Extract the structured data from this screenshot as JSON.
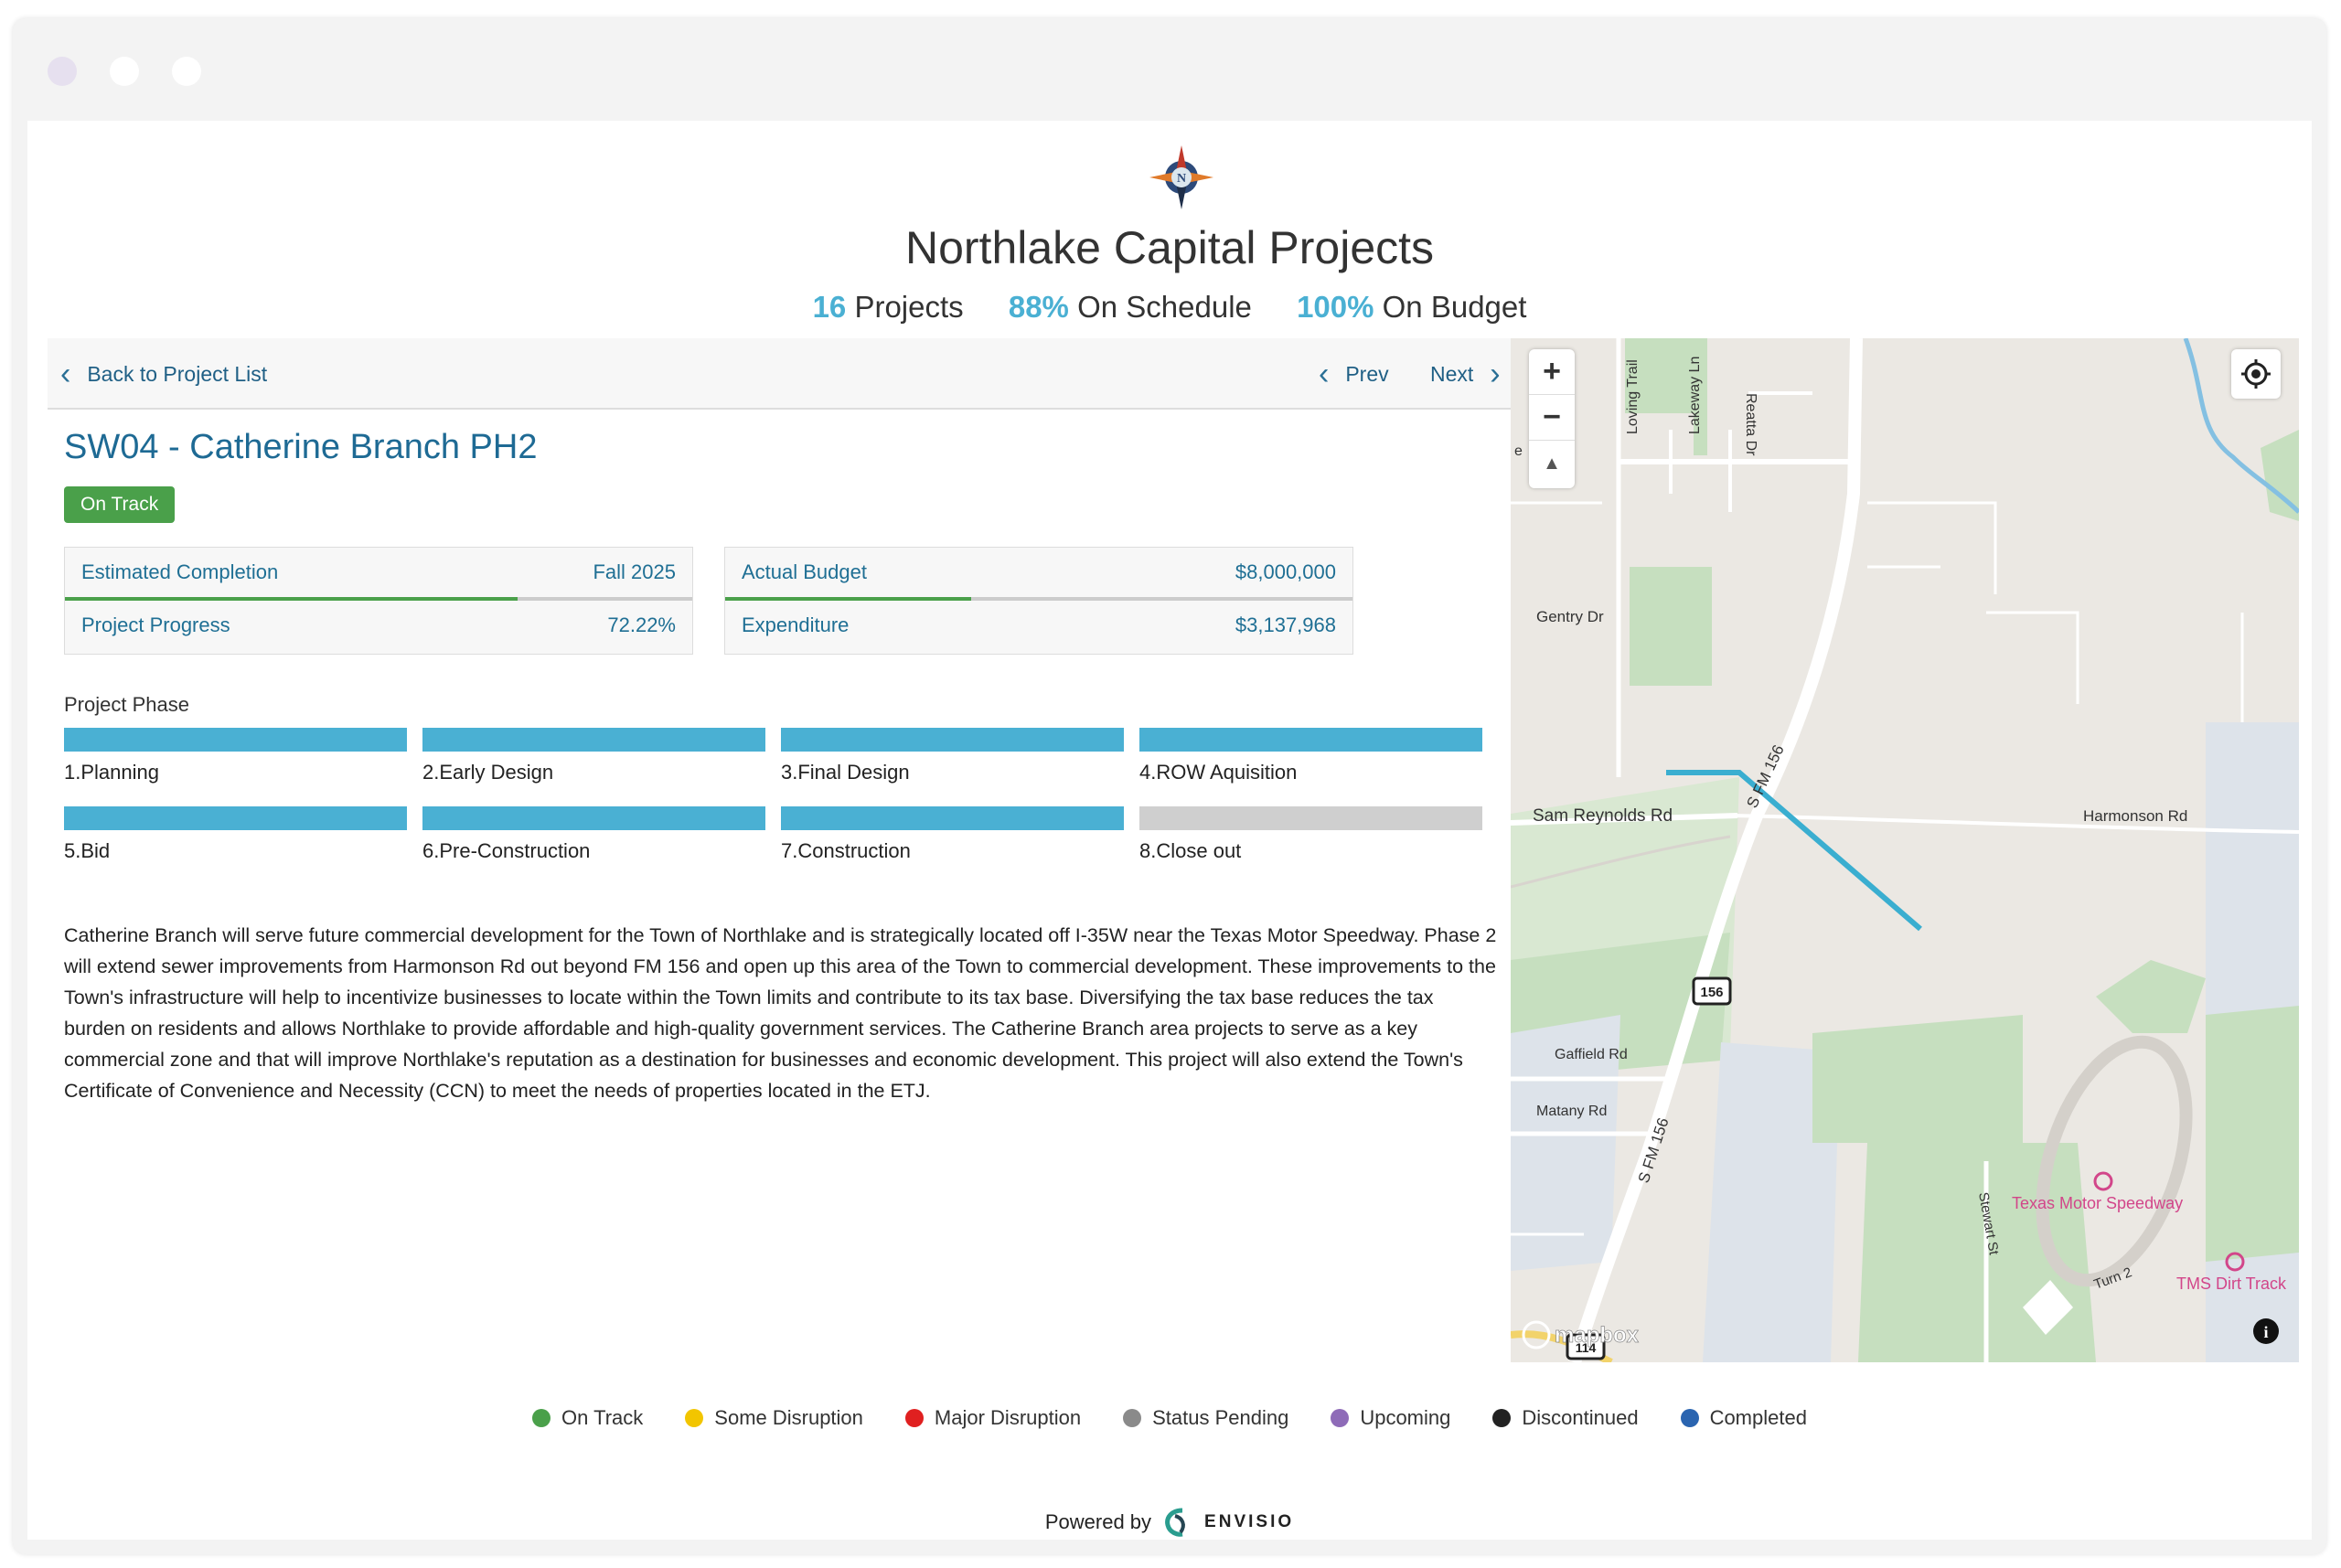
{
  "window": {
    "dot_colors": [
      "#e6e0ef",
      "#ffffff",
      "#ffffff"
    ]
  },
  "header": {
    "title": "Northlake Capital Projects",
    "stats": [
      {
        "value": "16",
        "label": "Projects"
      },
      {
        "value": "88%",
        "label": "On Schedule"
      },
      {
        "value": "100%",
        "label": "On Budget"
      }
    ]
  },
  "nav": {
    "back_label": "Back to Project List",
    "prev_label": "Prev",
    "next_label": "Next"
  },
  "project": {
    "title": "SW04 - Catherine Branch PH2",
    "status": "On Track",
    "status_color": "#4aa04a",
    "estimated_completion_label": "Estimated Completion",
    "estimated_completion_value": "Fall 2025",
    "progress_label": "Project Progress",
    "progress_value": "72.22%",
    "progress_fraction": 0.7222,
    "budget_label": "Actual Budget",
    "budget_value": "$8,000,000",
    "expenditure_label": "Expenditure",
    "expenditure_value": "$3,137,968",
    "expenditure_fraction": 0.392,
    "phase_heading": "Project Phase",
    "phases": [
      {
        "label": "1.Planning",
        "complete": true
      },
      {
        "label": "2.Early Design",
        "complete": true
      },
      {
        "label": "3.Final Design",
        "complete": true
      },
      {
        "label": "4.ROW Aquisition",
        "complete": true
      },
      {
        "label": "5.Bid",
        "complete": true
      },
      {
        "label": "6.Pre-Construction",
        "complete": true
      },
      {
        "label": "7.Construction",
        "complete": true
      },
      {
        "label": "8.Close out",
        "complete": false
      }
    ],
    "description": "Catherine Branch will serve future commercial development for the Town of Northlake and is strategically located off I-35W near the Texas Motor Speedway. Phase 2 will extend sewer improvements from Harmonson Rd out beyond FM 156 and open up this area of the Town to commercial development. These improvements to the Town's infrastructure will help to incentivize businesses to locate within the Town limits and contribute to its tax base. Diversifying the tax base reduces the tax burden on residents and allows Northlake to provide affordable and high-quality government services. The Catherine Branch area projects to serve as a key commercial zone and that will improve Northlake's reputation as a destination for businesses and economic development. This project will also extend the Town's Certificate of Convenience and Necessity (CCN) to meet the needs of properties located in the ETJ."
  },
  "map": {
    "zoom_in": "+",
    "zoom_out": "−",
    "compass": "▲",
    "labels": {
      "loving_trail": "Loving Trail",
      "lakeway_ln": "Lakeway Ln",
      "reatta_dr": "Reatta Dr",
      "gentry_dr": "Gentry Dr",
      "sam_reynolds_rd": "Sam Reynolds Rd",
      "harmonson_rd": "Harmonson Rd",
      "s_fm_156_top": "S FM 156",
      "s_fm_156_bottom": "S FM 156",
      "gaffield_rd": "Gaffield Rd",
      "matany_rd": "Matany Rd",
      "stewart_st": "Stewart St",
      "texas_motor_speedway": "Texas Motor Speedway",
      "tms_dirt_track": "TMS Dirt Track",
      "turn_2": "Turn 2",
      "shield_156": "156",
      "shield_114": "114",
      "left_edge_e": "e",
      "mapbox": "mapbox",
      "info": "i"
    },
    "route_color": "#3aaed0"
  },
  "legend": [
    {
      "label": "On Track",
      "color": "#4aa04a"
    },
    {
      "label": "Some Disruption",
      "color": "#f2c500"
    },
    {
      "label": "Major Disruption",
      "color": "#e02020"
    },
    {
      "label": "Status Pending",
      "color": "#8a8a8a"
    },
    {
      "label": "Upcoming",
      "color": "#8e6bb8"
    },
    {
      "label": "Discontinued",
      "color": "#222222"
    },
    {
      "label": "Completed",
      "color": "#2a64b0"
    }
  ],
  "footer": {
    "powered_by": "Powered by",
    "brand": "ENVISIO"
  }
}
